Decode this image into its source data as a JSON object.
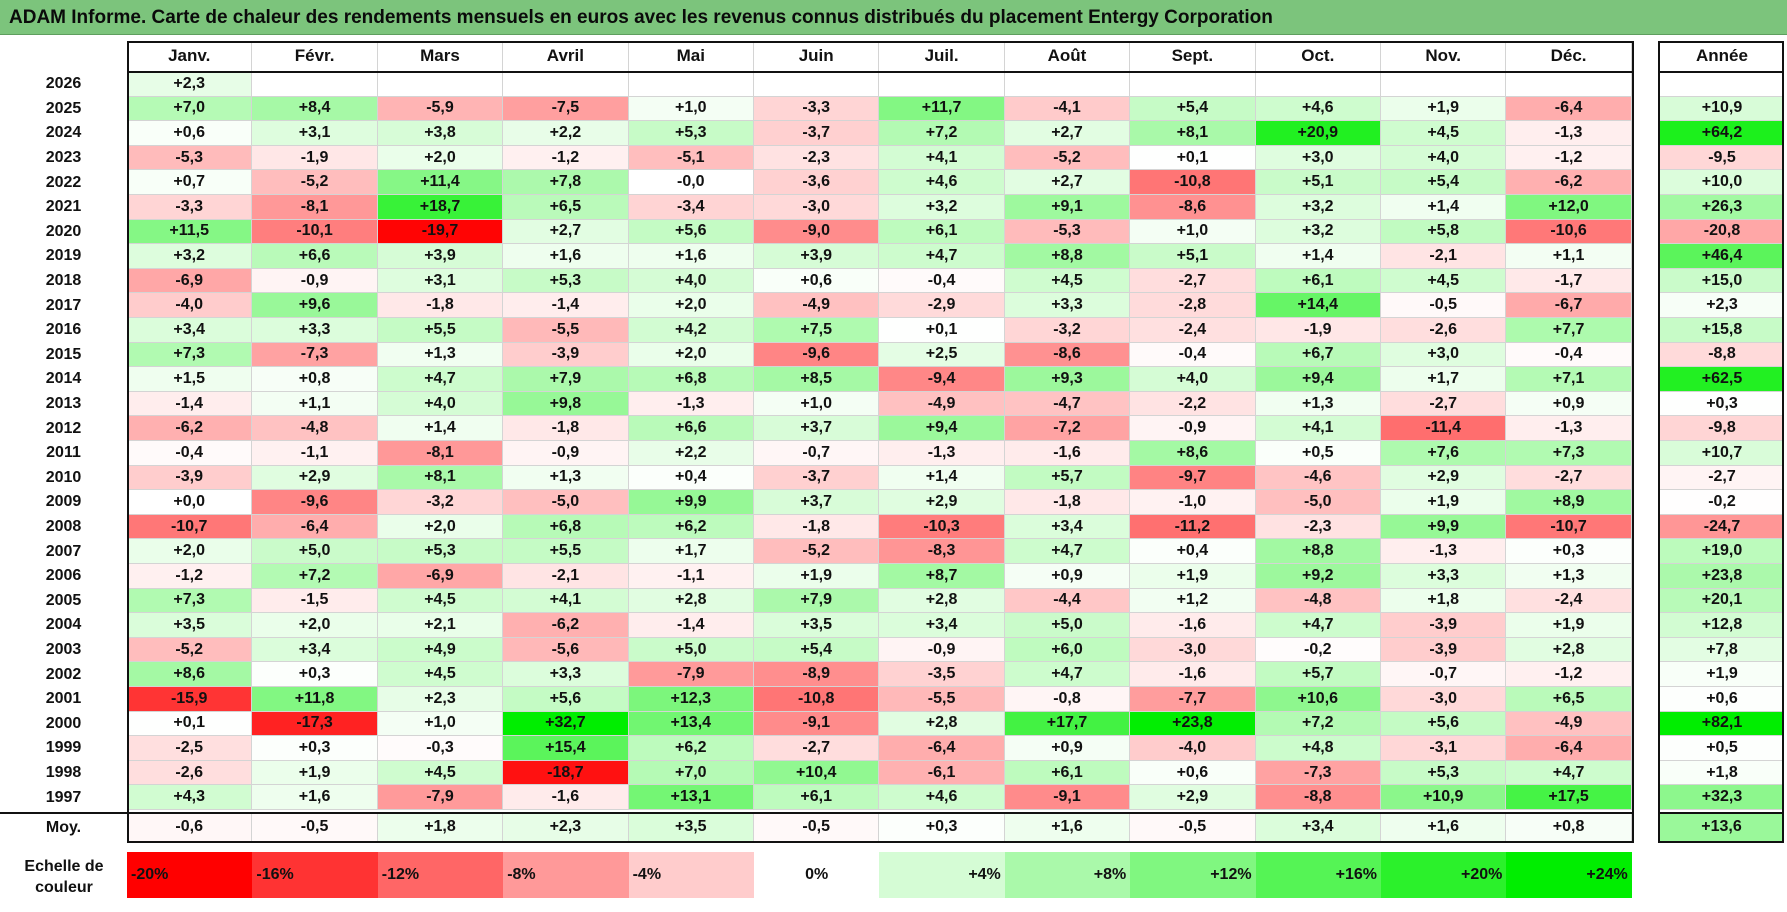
{
  "title": "ADAM Informe. Carte de chaleur des rendements mensuels en euros avec les revenus connus distribués du placement Entergy Corporation",
  "colors": {
    "title_bg": "#7cc47c",
    "neg_max": "#ff0000",
    "pos_max": "#00ee00",
    "neutral": "#ffffff"
  },
  "chart_data": {
    "type": "heatmap",
    "title": "ADAM Informe. Carte de chaleur des rendements mensuels en euros avec les revenus connus distribués du placement Entergy Corporation",
    "months": [
      "Janv.",
      "Févr.",
      "Mars",
      "Avril",
      "Mai",
      "Juin",
      "Juil.",
      "Août",
      "Sept.",
      "Oct.",
      "Nov.",
      "Déc."
    ],
    "year_col_label": "Année",
    "rows": [
      {
        "year": "2026",
        "values": [
          "+2,3",
          "",
          "",
          "",
          "",
          "",
          "",
          "",
          "",
          "",
          "",
          ""
        ],
        "annual": ""
      },
      {
        "year": "2025",
        "values": [
          "+7,0",
          "+8,4",
          "-5,9",
          "-7,5",
          "+1,0",
          "-3,3",
          "+11,7",
          "-4,1",
          "+5,4",
          "+4,6",
          "+1,9",
          "-6,4"
        ],
        "annual": "+10,9"
      },
      {
        "year": "2024",
        "values": [
          "+0,6",
          "+3,1",
          "+3,8",
          "+2,2",
          "+5,3",
          "-3,7",
          "+7,2",
          "+2,7",
          "+8,1",
          "+20,9",
          "+4,5",
          "-1,3"
        ],
        "annual": "+64,2"
      },
      {
        "year": "2023",
        "values": [
          "-5,3",
          "-1,9",
          "+2,0",
          "-1,2",
          "-5,1",
          "-2,3",
          "+4,1",
          "-5,2",
          "+0,1",
          "+3,0",
          "+4,0",
          "-1,2"
        ],
        "annual": "-9,5"
      },
      {
        "year": "2022",
        "values": [
          "+0,7",
          "-5,2",
          "+11,4",
          "+7,8",
          "-0,0",
          "-3,6",
          "+4,6",
          "+2,7",
          "-10,8",
          "+5,1",
          "+5,4",
          "-6,2"
        ],
        "annual": "+10,0"
      },
      {
        "year": "2021",
        "values": [
          "-3,3",
          "-8,1",
          "+18,7",
          "+6,5",
          "-3,4",
          "-3,0",
          "+3,2",
          "+9,1",
          "-8,6",
          "+3,2",
          "+1,4",
          "+12,0"
        ],
        "annual": "+26,3"
      },
      {
        "year": "2020",
        "values": [
          "+11,5",
          "-10,1",
          "-19,7",
          "+2,7",
          "+5,6",
          "-9,0",
          "+6,1",
          "-5,3",
          "+1,0",
          "+3,2",
          "+5,8",
          "-10,6"
        ],
        "annual": "-20,8"
      },
      {
        "year": "2019",
        "values": [
          "+3,2",
          "+6,6",
          "+3,9",
          "+1,6",
          "+1,6",
          "+3,9",
          "+4,7",
          "+8,8",
          "+5,1",
          "+1,4",
          "-2,1",
          "+1,1"
        ],
        "annual": "+46,4"
      },
      {
        "year": "2018",
        "values": [
          "-6,9",
          "-0,9",
          "+3,1",
          "+5,3",
          "+4,0",
          "+0,6",
          "-0,4",
          "+4,5",
          "-2,7",
          "+6,1",
          "+4,5",
          "-1,7"
        ],
        "annual": "+15,0"
      },
      {
        "year": "2017",
        "values": [
          "-4,0",
          "+9,6",
          "-1,8",
          "-1,4",
          "+2,0",
          "-4,9",
          "-2,9",
          "+3,3",
          "-2,8",
          "+14,4",
          "-0,5",
          "-6,7"
        ],
        "annual": "+2,3"
      },
      {
        "year": "2016",
        "values": [
          "+3,4",
          "+3,3",
          "+5,5",
          "-5,5",
          "+4,2",
          "+7,5",
          "+0,1",
          "-3,2",
          "-2,4",
          "-1,9",
          "-2,6",
          "+7,7"
        ],
        "annual": "+15,8"
      },
      {
        "year": "2015",
        "values": [
          "+7,3",
          "-7,3",
          "+1,3",
          "-3,9",
          "+2,0",
          "-9,6",
          "+2,5",
          "-8,6",
          "-0,4",
          "+6,7",
          "+3,0",
          "-0,4"
        ],
        "annual": "-8,8"
      },
      {
        "year": "2014",
        "values": [
          "+1,5",
          "+0,8",
          "+4,7",
          "+7,9",
          "+6,8",
          "+8,5",
          "-9,4",
          "+9,3",
          "+4,0",
          "+9,4",
          "+1,7",
          "+7,1"
        ],
        "annual": "+62,5"
      },
      {
        "year": "2013",
        "values": [
          "-1,4",
          "+1,1",
          "+4,0",
          "+9,8",
          "-1,3",
          "+1,0",
          "-4,9",
          "-4,7",
          "-2,2",
          "+1,3",
          "-2,7",
          "+0,9"
        ],
        "annual": "+0,3"
      },
      {
        "year": "2012",
        "values": [
          "-6,2",
          "-4,8",
          "+1,4",
          "-1,8",
          "+6,6",
          "+3,7",
          "+9,4",
          "-7,2",
          "-0,9",
          "+4,1",
          "-11,4",
          "-1,3"
        ],
        "annual": "-9,8"
      },
      {
        "year": "2011",
        "values": [
          "-0,4",
          "-1,1",
          "-8,1",
          "-0,9",
          "+2,2",
          "-0,7",
          "-1,3",
          "-1,6",
          "+8,6",
          "+0,5",
          "+7,6",
          "+7,3"
        ],
        "annual": "+10,7"
      },
      {
        "year": "2010",
        "values": [
          "-3,9",
          "+2,9",
          "+8,1",
          "+1,3",
          "+0,4",
          "-3,7",
          "+1,4",
          "+5,7",
          "-9,7",
          "-4,6",
          "+2,9",
          "-2,7"
        ],
        "annual": "-2,7"
      },
      {
        "year": "2009",
        "values": [
          "+0,0",
          "-9,6",
          "-3,2",
          "-5,0",
          "+9,9",
          "+3,7",
          "+2,9",
          "-1,8",
          "-1,0",
          "-5,0",
          "+1,9",
          "+8,9"
        ],
        "annual": "-0,2"
      },
      {
        "year": "2008",
        "values": [
          "-10,7",
          "-6,4",
          "+2,0",
          "+6,8",
          "+6,2",
          "-1,8",
          "-10,3",
          "+3,4",
          "-11,2",
          "-2,3",
          "+9,9",
          "-10,7"
        ],
        "annual": "-24,7"
      },
      {
        "year": "2007",
        "values": [
          "+2,0",
          "+5,0",
          "+5,3",
          "+5,5",
          "+1,7",
          "-5,2",
          "-8,3",
          "+4,7",
          "+0,4",
          "+8,8",
          "-1,3",
          "+0,3"
        ],
        "annual": "+19,0"
      },
      {
        "year": "2006",
        "values": [
          "-1,2",
          "+7,2",
          "-6,9",
          "-2,1",
          "-1,1",
          "+1,9",
          "+8,7",
          "+0,9",
          "+1,9",
          "+9,2",
          "+3,3",
          "+1,3"
        ],
        "annual": "+23,8"
      },
      {
        "year": "2005",
        "values": [
          "+7,3",
          "-1,5",
          "+4,5",
          "+4,1",
          "+2,8",
          "+7,9",
          "+2,8",
          "-4,4",
          "+1,2",
          "-4,8",
          "+1,8",
          "-2,4"
        ],
        "annual": "+20,1"
      },
      {
        "year": "2004",
        "values": [
          "+3,5",
          "+2,0",
          "+2,1",
          "-6,2",
          "-1,4",
          "+3,5",
          "+3,4",
          "+5,0",
          "-1,6",
          "+4,7",
          "-3,9",
          "+1,9"
        ],
        "annual": "+12,8"
      },
      {
        "year": "2003",
        "values": [
          "-5,2",
          "+3,4",
          "+4,9",
          "-5,6",
          "+5,0",
          "+5,4",
          "-0,9",
          "+6,0",
          "-3,0",
          "-0,2",
          "-3,9",
          "+2,8"
        ],
        "annual": "+7,8"
      },
      {
        "year": "2002",
        "values": [
          "+8,6",
          "+0,3",
          "+4,5",
          "+3,3",
          "-7,9",
          "-8,9",
          "-3,5",
          "+4,7",
          "-1,6",
          "+5,7",
          "-0,7",
          "-1,2"
        ],
        "annual": "+1,9"
      },
      {
        "year": "2001",
        "values": [
          "-15,9",
          "+11,8",
          "+2,3",
          "+5,6",
          "+12,3",
          "-10,8",
          "-5,5",
          "-0,8",
          "-7,7",
          "+10,6",
          "-3,0",
          "+6,5"
        ],
        "annual": "+0,6"
      },
      {
        "year": "2000",
        "values": [
          "+0,1",
          "-17,3",
          "+1,0",
          "+32,7",
          "+13,4",
          "-9,1",
          "+2,8",
          "+17,7",
          "+23,8",
          "+7,2",
          "+5,6",
          "-4,9"
        ],
        "annual": "+82,1"
      },
      {
        "year": "1999",
        "values": [
          "-2,5",
          "+0,3",
          "-0,3",
          "+15,4",
          "+6,2",
          "-2,7",
          "-6,4",
          "+0,9",
          "-4,0",
          "+4,8",
          "-3,1",
          "-6,4"
        ],
        "annual": "+0,5"
      },
      {
        "year": "1998",
        "values": [
          "-2,6",
          "+1,9",
          "+4,5",
          "-18,7",
          "+7,0",
          "+10,4",
          "-6,1",
          "+6,1",
          "+0,6",
          "-7,3",
          "+5,3",
          "+4,7"
        ],
        "annual": "+1,8"
      },
      {
        "year": "1997",
        "values": [
          "+4,3",
          "+1,6",
          "-7,9",
          "-1,6",
          "+13,1",
          "+6,1",
          "+4,6",
          "-9,1",
          "+2,9",
          "-8,8",
          "+10,9",
          "+17,5"
        ],
        "annual": "+32,3"
      }
    ],
    "average": {
      "label": "Moy.",
      "values": [
        "-0,6",
        "-0,5",
        "+1,8",
        "+2,3",
        "+3,5",
        "-0,5",
        "+0,3",
        "+1,6",
        "-0,5",
        "+3,4",
        "+1,6",
        "+0,8"
      ],
      "annual": "+13,6"
    },
    "scale": {
      "label_line1": "Echelle de",
      "label_line2": "couleur",
      "steps": [
        "-20%",
        "-16%",
        "-12%",
        "-8%",
        "-4%",
        "0%",
        "+4%",
        "+8%",
        "+12%",
        "+16%",
        "+20%",
        "+24%"
      ]
    }
  }
}
